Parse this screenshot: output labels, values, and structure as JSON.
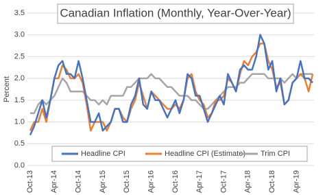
{
  "chart_data": {
    "type": "line",
    "title": "Canadian Inflation (Monthly, Year-Over-Year)",
    "y_label": "Percent",
    "categories": [
      "Oct-13",
      null,
      null,
      null,
      null,
      null,
      "Apr-14",
      null,
      null,
      null,
      null,
      null,
      "Oct-14",
      null,
      null,
      null,
      null,
      null,
      "Apr-15",
      null,
      null,
      null,
      null,
      null,
      "Oct-15",
      null,
      null,
      null,
      null,
      null,
      "Apr-16",
      null,
      null,
      null,
      null,
      null,
      "Oct-16",
      null,
      null,
      null,
      null,
      null,
      "Apr-17",
      null,
      null,
      null,
      null,
      null,
      "Oct-17",
      null,
      null,
      null,
      null,
      null,
      "Apr-18",
      null,
      null,
      null,
      null,
      null,
      "Oct-18",
      null,
      null,
      null,
      null,
      null,
      "Apr-19",
      null,
      null,
      null,
      null
    ],
    "series": [
      {
        "name": "Headline CPI",
        "color": "#4472c4",
        "values": [
          0.7,
          0.9,
          1.2,
          1.5,
          1.1,
          1.5,
          2.0,
          2.3,
          2.4,
          2.1,
          2.1,
          2.0,
          2.4,
          2.0,
          1.5,
          1.0,
          1.0,
          1.2,
          0.8,
          0.9,
          1.0,
          1.3,
          1.3,
          1.0,
          1.0,
          1.4,
          1.6,
          2.0,
          1.4,
          1.3,
          1.7,
          1.5,
          1.5,
          1.3,
          1.1,
          1.3,
          1.5,
          1.2,
          1.5,
          2.1,
          2.0,
          1.6,
          1.6,
          1.3,
          1.0,
          1.2,
          1.4,
          1.6,
          1.4,
          2.1,
          1.9,
          1.7,
          2.2,
          2.3,
          2.2,
          2.2,
          2.5,
          3.0,
          2.8,
          2.2,
          2.4,
          1.7,
          2.0,
          1.4,
          1.5,
          1.9,
          2.0,
          2.4,
          2.0,
          2.0,
          1.9
        ]
      },
      {
        "name": "Headline CPI (Estimate)",
        "color": "#ed7d31",
        "values": [
          0.8,
          1.0,
          1.0,
          1.3,
          1.0,
          1.5,
          2.0,
          2.0,
          2.3,
          2.2,
          2.0,
          2.0,
          2.1,
          1.9,
          1.4,
          0.8,
          1.0,
          1.0,
          1.0,
          0.8,
          1.0,
          1.3,
          1.3,
          1.1,
          1.0,
          1.3,
          1.5,
          1.9,
          1.6,
          1.3,
          1.7,
          1.6,
          1.5,
          1.4,
          1.3,
          1.3,
          1.4,
          1.3,
          1.5,
          2.0,
          2.1,
          1.7,
          1.5,
          1.4,
          1.1,
          1.2,
          1.5,
          1.5,
          1.6,
          2.0,
          1.9,
          1.7,
          2.1,
          2.4,
          2.3,
          2.5,
          2.6,
          2.8,
          2.8,
          2.4,
          2.2,
          1.8,
          1.9,
          1.4,
          1.5,
          1.9,
          2.0,
          2.1,
          2.0,
          1.7,
          2.1
        ]
      },
      {
        "name": "Trim CPI",
        "color": "#a5a5a5",
        "values": [
          1.2,
          1.2,
          1.4,
          1.5,
          1.4,
          1.5,
          1.6,
          1.8,
          2.0,
          1.9,
          1.7,
          1.7,
          1.7,
          1.7,
          1.6,
          1.5,
          1.5,
          1.4,
          1.5,
          1.4,
          1.6,
          1.6,
          1.6,
          1.6,
          1.8,
          1.8,
          1.9,
          2.0,
          2.0,
          2.0,
          2.1,
          2.0,
          2.0,
          1.9,
          1.8,
          1.8,
          1.7,
          1.6,
          1.6,
          1.6,
          1.5,
          1.5,
          1.4,
          1.3,
          1.3,
          1.4,
          1.5,
          1.6,
          1.7,
          1.8,
          1.8,
          1.8,
          1.9,
          1.9,
          2.0,
          2.1,
          2.1,
          2.1,
          2.1,
          2.0,
          2.0,
          2.0,
          2.0,
          1.9,
          2.0,
          2.1,
          2.0,
          2.1,
          2.1,
          2.1,
          2.1
        ]
      }
    ],
    "ylim": [
      0,
      3.5
    ],
    "yticks": [
      {
        "value": 0,
        "label": "0.0"
      },
      {
        "value": 0.5,
        "label": "0.5"
      },
      {
        "value": 1,
        "label": "1.0"
      },
      {
        "value": 1.5,
        "label": "1.5"
      },
      {
        "value": 2,
        "label": "2.0"
      },
      {
        "value": 2.5,
        "label": "2.5"
      },
      {
        "value": 3,
        "label": "3.0"
      },
      {
        "value": 3.5,
        "label": "3.5"
      }
    ],
    "grid": true
  }
}
